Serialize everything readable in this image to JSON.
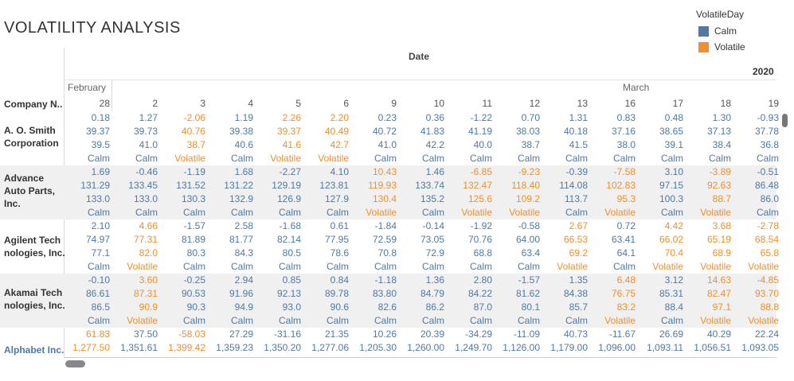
{
  "title": "VOLATILITY ANALYSIS",
  "legend": {
    "title": "VolatileDay",
    "items": [
      {
        "label": "Calm",
        "color": "#4e79a7"
      },
      {
        "label": "Volatile",
        "color": "#f28e2b"
      }
    ]
  },
  "column_header": "Date",
  "year": "2020",
  "months": [
    "February",
    "March"
  ],
  "row_header": "Company N..",
  "days": [
    "28",
    "2",
    "3",
    "4",
    "5",
    "6",
    "9",
    "10",
    "11",
    "12",
    "13",
    "16",
    "17",
    "18",
    "19"
  ],
  "rows": [
    {
      "company": [
        "A. O. Smith",
        "Corporation"
      ],
      "changes": [
        "0.18",
        "1.27",
        "-2.06",
        "1.19",
        "2.26",
        "2.20",
        "0.23",
        "0.36",
        "-1.22",
        "0.70",
        "1.31",
        "0.83",
        "0.48",
        "1.30",
        "-0.93"
      ],
      "prices": [
        "39.37",
        "39.73",
        "40.76",
        "39.38",
        "39.37",
        "40.49",
        "40.72",
        "41.83",
        "41.19",
        "38.03",
        "40.18",
        "37.16",
        "38.65",
        "37.13",
        "37.78"
      ],
      "ranges": [
        "39.5",
        "41.0",
        "38.7",
        "40.6",
        "41.6",
        "42.7",
        "41.0",
        "42.2",
        "40.0",
        "38.7",
        "41.5",
        "38.0",
        "39.1",
        "38.4",
        "36.8"
      ],
      "status": [
        "Calm",
        "Calm",
        "Volatile",
        "Calm",
        "Volatile",
        "Volatile",
        "Calm",
        "Calm",
        "Calm",
        "Calm",
        "Calm",
        "Calm",
        "Calm",
        "Calm",
        "Calm"
      ]
    },
    {
      "company": [
        "Advance",
        "Auto Parts,",
        "Inc."
      ],
      "changes": [
        "1.69",
        "-0.46",
        "-1.19",
        "1.68",
        "-2.27",
        "4.10",
        "10.43",
        "1.46",
        "-6.85",
        "-9.23",
        "-0.39",
        "-7.58",
        "3.10",
        "-3.89",
        "-0.51"
      ],
      "prices": [
        "131.29",
        "133.45",
        "131.52",
        "131.22",
        "129.19",
        "123.81",
        "119.93",
        "133.74",
        "132.47",
        "118.40",
        "114.08",
        "102.83",
        "97.15",
        "92.63",
        "86.48"
      ],
      "ranges": [
        "133.0",
        "133.0",
        "130.3",
        "132.9",
        "126.9",
        "127.9",
        "130.4",
        "135.2",
        "125.6",
        "109.2",
        "113.7",
        "95.3",
        "100.3",
        "88.7",
        "86.0"
      ],
      "status": [
        "Calm",
        "Calm",
        "Calm",
        "Calm",
        "Calm",
        "Calm",
        "Volatile",
        "Calm",
        "Volatile",
        "Volatile",
        "Calm",
        "Volatile",
        "Calm",
        "Volatile",
        "Calm"
      ]
    },
    {
      "company": [
        "Agilent Tech",
        "nologies, Inc."
      ],
      "changes": [
        "2.10",
        "4.66",
        "-1.57",
        "2.58",
        "-1.68",
        "0.61",
        "-1.84",
        "-0.14",
        "-1.92",
        "-0.58",
        "2.67",
        "0.72",
        "4.42",
        "3.68",
        "-2.78"
      ],
      "prices": [
        "74.97",
        "77.31",
        "81.89",
        "81.77",
        "82.14",
        "77.95",
        "72.59",
        "73.05",
        "70.76",
        "64.00",
        "66.53",
        "63.41",
        "66.02",
        "65.19",
        "68.54"
      ],
      "ranges": [
        "77.1",
        "82.0",
        "80.3",
        "84.3",
        "80.5",
        "78.6",
        "70.8",
        "72.9",
        "68.8",
        "63.4",
        "69.2",
        "64.1",
        "70.4",
        "68.9",
        "65.8"
      ],
      "status": [
        "Calm",
        "Volatile",
        "Calm",
        "Calm",
        "Calm",
        "Calm",
        "Calm",
        "Calm",
        "Calm",
        "Calm",
        "Volatile",
        "Calm",
        "Volatile",
        "Volatile",
        "Volatile"
      ]
    },
    {
      "company": [
        "Akamai Tech",
        "nologies, Inc."
      ],
      "changes": [
        "-0.10",
        "3.60",
        "-0.25",
        "2.94",
        "0.85",
        "0.84",
        "-1.18",
        "1.36",
        "2.80",
        "-1.57",
        "1.35",
        "6.48",
        "3.12",
        "14.63",
        "-4.85"
      ],
      "prices": [
        "86.61",
        "87.31",
        "90.53",
        "91.96",
        "92.13",
        "89.78",
        "83.80",
        "84.79",
        "84.22",
        "81.62",
        "84.38",
        "76.75",
        "85.31",
        "82.47",
        "93.70"
      ],
      "ranges": [
        "86.5",
        "90.9",
        "90.3",
        "94.9",
        "93.0",
        "90.6",
        "82.6",
        "86.2",
        "87.0",
        "80.1",
        "85.7",
        "83.2",
        "88.4",
        "97.1",
        "88.8"
      ],
      "status": [
        "Calm",
        "Volatile",
        "Calm",
        "Calm",
        "Calm",
        "Calm",
        "Calm",
        "Calm",
        "Calm",
        "Calm",
        "Calm",
        "Volatile",
        "Calm",
        "Volatile",
        "Volatile"
      ]
    },
    {
      "company": [
        "",
        "Alphabet Inc."
      ],
      "changes": [
        "61.83",
        "37.50",
        "-58.03",
        "27.29",
        "-31.16",
        "21.35",
        "10.26",
        "20.39",
        "-34.29",
        "-11.09",
        "40.73",
        "-11.67",
        "26.69",
        "40.29",
        "22.24"
      ],
      "prices": [
        "1,277.50",
        "1,351.61",
        "1,399.42",
        "1,359.23",
        "1,350.20",
        "1,277.06",
        "1,205.30",
        "1,260.00",
        "1,249.70",
        "1,126.00",
        "1,179.00",
        "1,096.00",
        "1,093.11",
        "1,056.51",
        "1,093.05"
      ],
      "ranges": [],
      "status": []
    }
  ]
}
